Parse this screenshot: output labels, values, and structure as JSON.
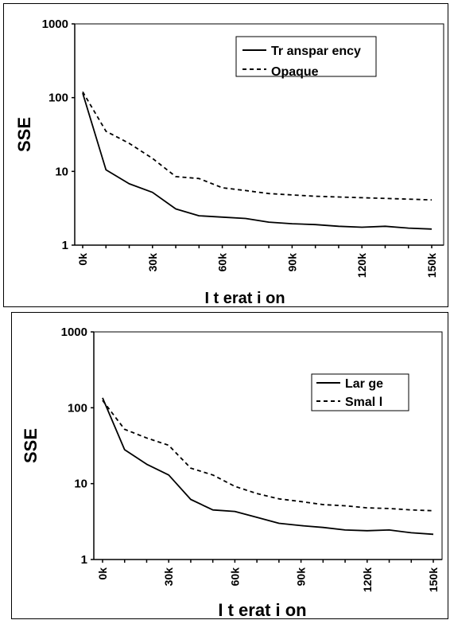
{
  "chart_data": [
    {
      "type": "line",
      "title": "",
      "xlabel": "I t erat i on",
      "ylabel": "SSE",
      "yscale": "log",
      "ylim": [
        1,
        1000
      ],
      "yticks": [
        "1",
        "10",
        "100",
        "1000"
      ],
      "xtick_labels": [
        "0k",
        "30k",
        "60k",
        "90k",
        "120k",
        "150k"
      ],
      "grid": false,
      "legend": "top-right",
      "x": [
        0,
        10,
        20,
        30,
        40,
        50,
        60,
        70,
        80,
        90,
        100,
        110,
        120,
        130,
        140,
        150
      ],
      "series": [
        {
          "name": "Tr anspar ency",
          "style": "solid",
          "values": [
            115,
            10.5,
            6.8,
            5.2,
            3.1,
            2.5,
            2.4,
            2.3,
            2.05,
            1.95,
            1.9,
            1.8,
            1.75,
            1.8,
            1.7,
            1.65
          ]
        },
        {
          "name": "Opaque",
          "style": "dashed",
          "values": [
            120,
            35,
            24,
            15,
            8.5,
            8.0,
            6.0,
            5.5,
            5.0,
            4.8,
            4.6,
            4.5,
            4.4,
            4.3,
            4.2,
            4.1
          ]
        }
      ]
    },
    {
      "type": "line",
      "title": "",
      "xlabel": "I t erat i on",
      "ylabel": "SSE",
      "yscale": "log",
      "ylim": [
        1,
        1000
      ],
      "yticks": [
        "1",
        "10",
        "100",
        "1000"
      ],
      "xtick_labels": [
        "0k",
        "30k",
        "60k",
        "90k",
        "120k",
        "150k"
      ],
      "grid": false,
      "legend": "top-right",
      "x": [
        0,
        10,
        20,
        30,
        40,
        50,
        60,
        70,
        80,
        90,
        100,
        110,
        120,
        130,
        140,
        150
      ],
      "series": [
        {
          "name": "Lar ge",
          "style": "solid",
          "values": [
            135,
            28,
            18,
            13,
            6.2,
            4.5,
            4.3,
            3.6,
            3.0,
            2.8,
            2.65,
            2.45,
            2.4,
            2.45,
            2.25,
            2.15
          ]
        },
        {
          "name": "Smal l",
          "style": "dashed",
          "values": [
            125,
            52,
            40,
            32,
            16,
            13,
            9.2,
            7.4,
            6.3,
            5.8,
            5.3,
            5.1,
            4.8,
            4.7,
            4.5,
            4.4
          ]
        }
      ]
    }
  ]
}
